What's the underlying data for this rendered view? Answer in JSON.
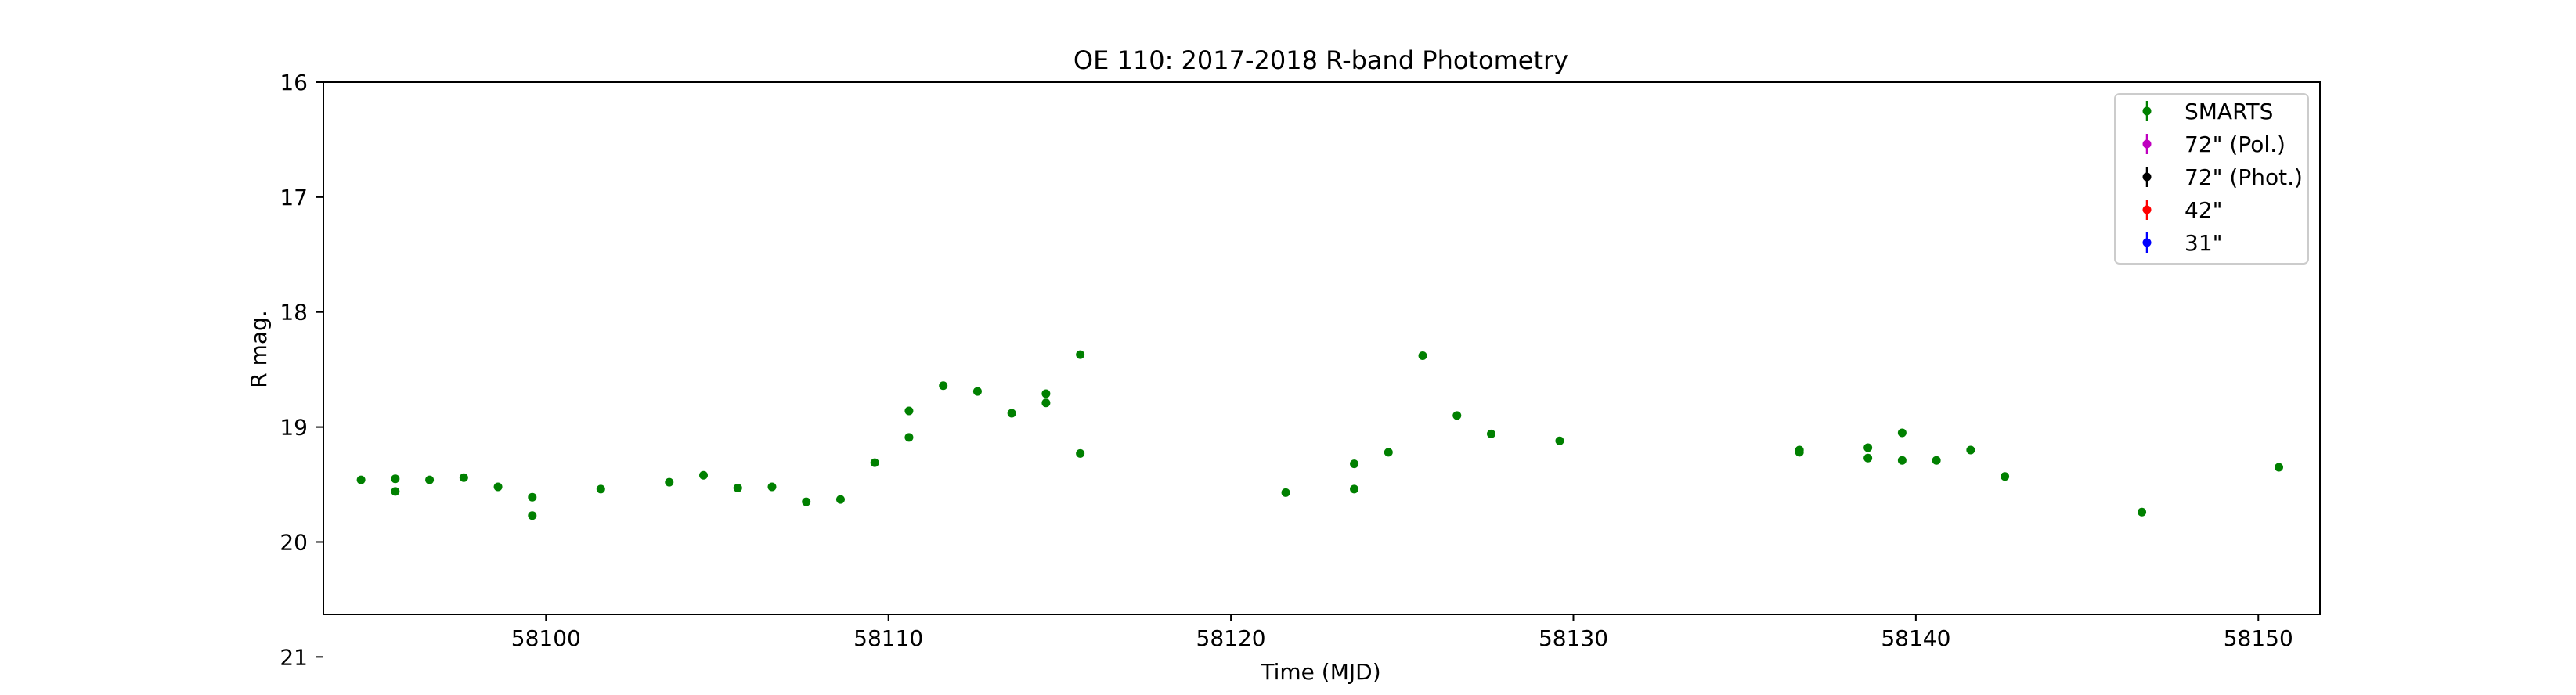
{
  "chart_data": {
    "type": "scatter",
    "title": "OE 110: 2017-2018 R-band Photometry",
    "xlabel": "Time (MJD)",
    "ylabel": "R mag.",
    "xlim": [
      58093.5,
      58151.8
    ],
    "ylim": [
      16,
      20.63
    ],
    "y_inverted": true,
    "x_ticks": [
      58100,
      58110,
      58120,
      58130,
      58140,
      58150
    ],
    "y_ticks": [
      16,
      17,
      18,
      19,
      20,
      21
    ],
    "grid": false,
    "legend_position": "top-right",
    "series": [
      {
        "name": "SMARTS",
        "color": "#008000",
        "marker": "errorbar-dot",
        "x": [
          58094.6,
          58095.6,
          58095.6,
          58096.6,
          58097.6,
          58098.6,
          58099.6,
          58099.6,
          58101.6,
          58103.6,
          58104.6,
          58105.6,
          58106.6,
          58107.6,
          58108.6,
          58109.6,
          58110.6,
          58110.6,
          58111.6,
          58112.6,
          58113.6,
          58114.6,
          58114.6,
          58115.6,
          58115.6,
          58121.6,
          58123.6,
          58123.6,
          58124.6,
          58125.6,
          58126.6,
          58127.6,
          58129.6,
          58136.6,
          58136.6,
          58138.6,
          58138.6,
          58139.6,
          58139.6,
          58140.6,
          58141.6,
          58142.6,
          58146.6,
          58150.6
        ],
        "y": [
          19.46,
          19.45,
          19.56,
          19.46,
          19.44,
          19.52,
          19.61,
          19.77,
          19.54,
          19.48,
          19.42,
          19.53,
          19.52,
          19.65,
          19.63,
          19.31,
          18.86,
          19.09,
          18.64,
          18.69,
          18.88,
          18.71,
          18.79,
          18.37,
          19.23,
          19.57,
          19.32,
          19.54,
          19.22,
          18.38,
          18.9,
          19.06,
          19.12,
          19.2,
          19.22,
          19.18,
          19.27,
          19.05,
          19.29,
          19.29,
          19.2,
          19.43,
          19.74,
          19.35
        ]
      },
      {
        "name": "72\" (Pol.)",
        "color": "#bf00bf",
        "marker": "errorbar-dot",
        "x": [],
        "y": []
      },
      {
        "name": "72\" (Phot.)",
        "color": "#000000",
        "marker": "errorbar-dot",
        "x": [],
        "y": []
      },
      {
        "name": "42\"",
        "color": "#ff0000",
        "marker": "errorbar-dot",
        "x": [],
        "y": []
      },
      {
        "name": "31\"",
        "color": "#0000ff",
        "marker": "errorbar-dot",
        "x": [],
        "y": []
      }
    ]
  }
}
